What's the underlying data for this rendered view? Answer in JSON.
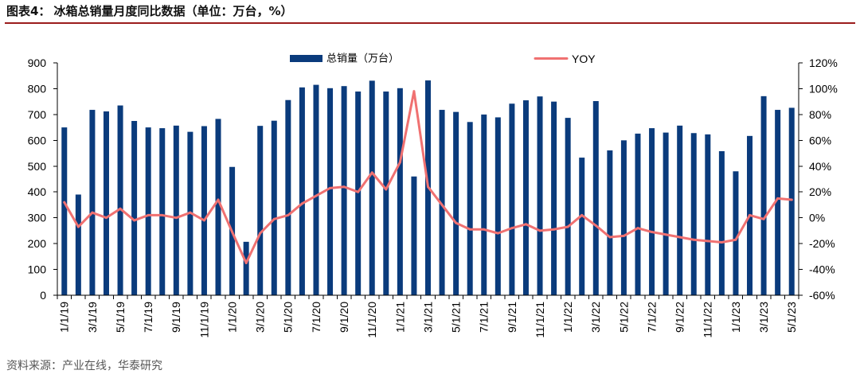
{
  "header": {
    "figure_label": "图表4："
  },
  "source": "资料来源：产业在线，华泰研究",
  "colors": {
    "title_rule": "#9b1c1c",
    "axis": "#000000"
  },
  "chart_data": {
    "type": "bar",
    "title": "冰箱总销量月度同比数据（单位：万台，%）",
    "legend": "top",
    "grid": false,
    "categories": [
      "1/1/19",
      "",
      "3/1/19",
      "",
      "5/1/19",
      "",
      "7/1/19",
      "",
      "9/1/19",
      "",
      "11/1/19",
      "",
      "1/1/20",
      "",
      "3/1/20",
      "",
      "5/1/20",
      "",
      "7/1/20",
      "",
      "9/1/20",
      "",
      "11/1/20",
      "",
      "1/1/21",
      "",
      "3/1/21",
      "",
      "5/1/21",
      "",
      "7/1/21",
      "",
      "9/1/21",
      "",
      "11/1/21",
      "",
      "1/1/22",
      "",
      "3/1/22",
      "",
      "5/1/22",
      "",
      "7/1/22",
      "",
      "9/1/22",
      "",
      "11/1/22",
      "",
      "1/1/23",
      "",
      "3/1/23",
      "",
      "5/1/23"
    ],
    "y_left": {
      "lim": [
        0,
        900
      ],
      "tick_labels": [
        "0",
        "100",
        "200",
        "300",
        "400",
        "500",
        "600",
        "700",
        "800",
        "900"
      ]
    },
    "y_right": {
      "lim": [
        -60,
        120
      ],
      "tick_labels": [
        "-60%",
        "-40%",
        "-20%",
        "0%",
        "20%",
        "40%",
        "60%",
        "80%",
        "100%",
        "120%"
      ]
    },
    "series": [
      {
        "name": "总销量（万台）",
        "type": "bar",
        "axis": "left",
        "color": "#0a3b7c",
        "values": [
          650,
          390,
          718,
          712,
          735,
          675,
          650,
          647,
          657,
          633,
          655,
          683,
          497,
          207,
          656,
          676,
          756,
          805,
          815,
          802,
          810,
          789,
          831,
          789,
          802,
          460,
          832,
          718,
          710,
          671,
          700,
          689,
          742,
          755,
          770,
          750,
          687,
          533,
          752,
          561,
          600,
          626,
          647,
          630,
          657,
          628,
          623,
          558,
          480,
          617,
          771,
          718,
          726
        ]
      },
      {
        "name": "YOY",
        "type": "line",
        "axis": "right",
        "color": "#f07171",
        "values": [
          12,
          -7,
          4,
          0,
          7,
          -2,
          2,
          2,
          0,
          4,
          -2,
          14,
          -11,
          -35,
          -12,
          -1,
          2,
          11,
          17,
          23,
          24,
          20,
          35,
          22,
          43,
          98,
          24,
          10,
          -4,
          -9,
          -9,
          -12,
          -8,
          -5,
          -10,
          -9,
          -7,
          2,
          -6,
          -15,
          -14,
          -8,
          -11,
          -13,
          -15,
          -17,
          -18,
          -19,
          -17,
          2,
          -1,
          15,
          14
        ]
      }
    ]
  }
}
